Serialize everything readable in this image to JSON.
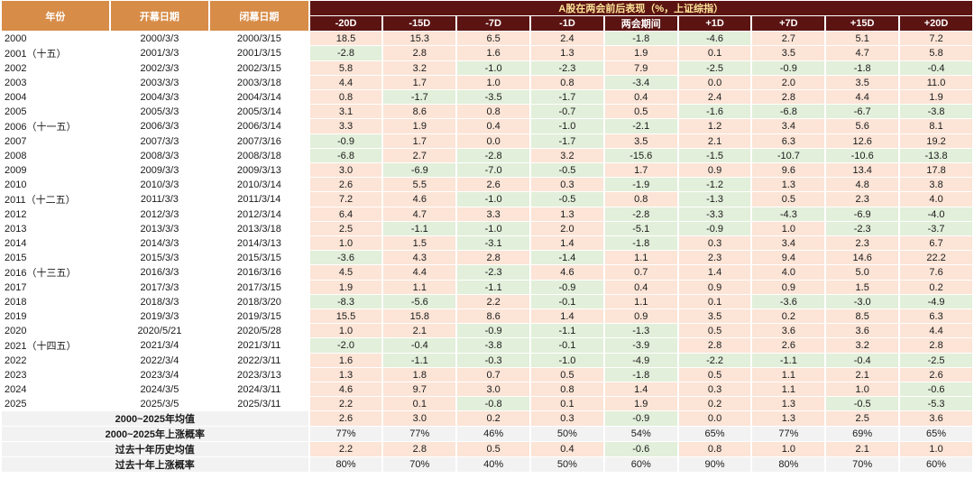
{
  "colors": {
    "header_orange": "#D78C48",
    "header_maroon": "#5B1412",
    "title_text": "#FFE699",
    "positive_bg": "#FCE4D6",
    "negative_bg": "#E2EFDA",
    "summary_bg": "#F2F2F2",
    "text": "#1A1A1A"
  },
  "table": {
    "left_headers": [
      "年份",
      "开幕日期",
      "闭幕日期"
    ],
    "title": "A股在两会前后表现（%，上证综指）",
    "period_headers": [
      "-20D",
      "-15D",
      "-7D",
      "-1D",
      "两会期间",
      "+1D",
      "+7D",
      "+15D",
      "+20D"
    ]
  },
  "chart_data": {
    "type": "table",
    "title": "A股在两会前后表现（%，上证综指）",
    "columns": [
      "年份",
      "开幕日期",
      "闭幕日期",
      "-20D",
      "-15D",
      "-7D",
      "-1D",
      "两会期间",
      "+1D",
      "+7D",
      "+15D",
      "+20D"
    ],
    "rows": [
      {
        "year": "2000",
        "open_date": "2000/3/3",
        "close_date": "2000/3/15",
        "values": [
          18.5,
          15.3,
          6.5,
          2.4,
          -1.8,
          -4.6,
          2.7,
          5.1,
          7.2
        ]
      },
      {
        "year": "2001（十五）",
        "open_date": "2001/3/3",
        "close_date": "2001/3/15",
        "values": [
          -2.8,
          2.8,
          1.6,
          1.3,
          1.9,
          0.1,
          3.5,
          4.7,
          5.8
        ]
      },
      {
        "year": "2002",
        "open_date": "2002/3/3",
        "close_date": "2002/3/15",
        "values": [
          5.8,
          3.2,
          -1.0,
          -2.3,
          7.9,
          -2.5,
          -0.9,
          -1.8,
          -0.4
        ]
      },
      {
        "year": "2003",
        "open_date": "2003/3/3",
        "close_date": "2003/3/18",
        "values": [
          4.4,
          1.7,
          1.0,
          0.8,
          -3.4,
          0.0,
          2.0,
          3.5,
          11.0
        ]
      },
      {
        "year": "2004",
        "open_date": "2004/3/3",
        "close_date": "2004/3/14",
        "values": [
          0.8,
          -1.7,
          -3.5,
          -1.7,
          0.4,
          2.4,
          2.8,
          4.4,
          1.9
        ]
      },
      {
        "year": "2005",
        "open_date": "2005/3/3",
        "close_date": "2005/3/14",
        "values": [
          3.1,
          8.6,
          0.8,
          -0.7,
          0.5,
          -1.6,
          -6.8,
          -6.7,
          -3.8
        ]
      },
      {
        "year": "2006（十一五）",
        "open_date": "2006/3/3",
        "close_date": "2006/3/14",
        "values": [
          3.3,
          1.9,
          0.4,
          -1.0,
          -2.1,
          1.2,
          3.4,
          5.6,
          8.1
        ]
      },
      {
        "year": "2007",
        "open_date": "2007/3/3",
        "close_date": "2007/3/16",
        "values": [
          -0.9,
          1.7,
          0.0,
          -1.7,
          3.5,
          2.1,
          6.3,
          12.6,
          19.2
        ]
      },
      {
        "year": "2008",
        "open_date": "2008/3/3",
        "close_date": "2008/3/18",
        "values": [
          -6.8,
          2.7,
          -2.8,
          3.2,
          -15.6,
          -1.5,
          -10.7,
          -10.6,
          -13.8
        ]
      },
      {
        "year": "2009",
        "open_date": "2009/3/3",
        "close_date": "2009/3/13",
        "values": [
          3.0,
          -6.9,
          -7.0,
          -0.5,
          1.7,
          0.9,
          9.6,
          13.4,
          17.8
        ]
      },
      {
        "year": "2010",
        "open_date": "2010/3/3",
        "close_date": "2010/3/14",
        "values": [
          2.6,
          5.5,
          2.6,
          0.3,
          -1.9,
          -1.2,
          1.3,
          4.8,
          3.8
        ]
      },
      {
        "year": "2011（十二五）",
        "open_date": "2011/3/3",
        "close_date": "2011/3/14",
        "values": [
          7.2,
          4.6,
          -1.0,
          -0.5,
          0.8,
          -1.3,
          0.5,
          2.3,
          4.0
        ]
      },
      {
        "year": "2012",
        "open_date": "2012/3/3",
        "close_date": "2012/3/14",
        "values": [
          6.4,
          4.7,
          3.3,
          1.3,
          -2.8,
          -3.3,
          -4.3,
          -6.9,
          -4.0
        ]
      },
      {
        "year": "2013",
        "open_date": "2013/3/3",
        "close_date": "2013/3/18",
        "values": [
          2.5,
          -1.1,
          -1.0,
          2.0,
          -5.1,
          -0.9,
          1.0,
          -2.3,
          -3.7
        ]
      },
      {
        "year": "2014",
        "open_date": "2014/3/3",
        "close_date": "2014/3/13",
        "values": [
          1.0,
          1.5,
          -3.1,
          1.4,
          -1.8,
          0.3,
          3.4,
          2.3,
          6.7
        ]
      },
      {
        "year": "2015",
        "open_date": "2015/3/3",
        "close_date": "2015/3/15",
        "values": [
          -3.6,
          4.3,
          2.8,
          -1.4,
          1.1,
          2.3,
          9.4,
          14.6,
          22.2
        ]
      },
      {
        "year": "2016（十三五）",
        "open_date": "2016/3/3",
        "close_date": "2016/3/16",
        "values": [
          4.5,
          4.4,
          -2.3,
          4.6,
          0.7,
          1.4,
          4.0,
          5.0,
          7.6
        ]
      },
      {
        "year": "2017",
        "open_date": "2017/3/3",
        "close_date": "2017/3/15",
        "values": [
          1.9,
          1.1,
          -1.1,
          -0.9,
          0.4,
          0.9,
          0.9,
          1.5,
          0.2
        ]
      },
      {
        "year": "2018",
        "open_date": "2018/3/3",
        "close_date": "2018/3/20",
        "values": [
          -8.3,
          -5.6,
          2.2,
          -0.1,
          1.1,
          0.1,
          -3.6,
          -3.0,
          -4.9
        ]
      },
      {
        "year": "2019",
        "open_date": "2019/3/3",
        "close_date": "2019/3/15",
        "values": [
          15.5,
          15.8,
          8.6,
          1.4,
          0.9,
          3.5,
          0.2,
          8.5,
          6.3
        ]
      },
      {
        "year": "2020",
        "open_date": "2020/5/21",
        "close_date": "2020/5/28",
        "values": [
          1.0,
          2.1,
          -0.9,
          -1.1,
          -1.3,
          0.5,
          3.6,
          3.6,
          4.4
        ]
      },
      {
        "year": "2021（十四五）",
        "open_date": "2021/3/4",
        "close_date": "2021/3/11",
        "values": [
          -2.0,
          -0.4,
          -3.8,
          -0.1,
          -3.9,
          2.8,
          2.6,
          3.2,
          2.8
        ]
      },
      {
        "year": "2022",
        "open_date": "2022/3/4",
        "close_date": "2022/3/11",
        "values": [
          1.6,
          -1.1,
          -0.3,
          -1.0,
          -4.9,
          -2.2,
          -1.1,
          -0.4,
          -2.5
        ]
      },
      {
        "year": "2023",
        "open_date": "2023/3/4",
        "close_date": "2023/3/13",
        "values": [
          1.3,
          1.8,
          0.7,
          0.5,
          -1.8,
          0.5,
          1.1,
          2.1,
          2.6
        ]
      },
      {
        "year": "2024",
        "open_date": "2024/3/5",
        "close_date": "2024/3/11",
        "values": [
          4.6,
          9.7,
          3.0,
          0.8,
          1.4,
          0.3,
          1.1,
          1.0,
          -0.6
        ]
      },
      {
        "year": "2025",
        "open_date": "2025/3/5",
        "close_date": "2025/3/11",
        "values": [
          2.2,
          0.1,
          -0.8,
          0.1,
          1.9,
          0.2,
          1.3,
          -0.5,
          -5.3
        ]
      }
    ],
    "summary_rows": [
      {
        "label": "2000~2025年均值",
        "kind": "mean",
        "values": [
          2.6,
          3.0,
          0.2,
          0.3,
          -0.9,
          0.0,
          1.3,
          2.5,
          3.6
        ]
      },
      {
        "label": "2000~2025年上涨概率",
        "kind": "probability",
        "values": [
          "77%",
          "77%",
          "46%",
          "50%",
          "54%",
          "65%",
          "77%",
          "69%",
          "65%"
        ]
      },
      {
        "label": "过去十年历史均值",
        "kind": "mean",
        "values": [
          2.2,
          2.8,
          0.5,
          0.4,
          -0.6,
          0.8,
          1.0,
          2.1,
          1.0
        ]
      },
      {
        "label": "过去十年上涨概率",
        "kind": "probability",
        "values": [
          "80%",
          "70%",
          "40%",
          "50%",
          "60%",
          "90%",
          "80%",
          "70%",
          "60%"
        ]
      }
    ]
  }
}
